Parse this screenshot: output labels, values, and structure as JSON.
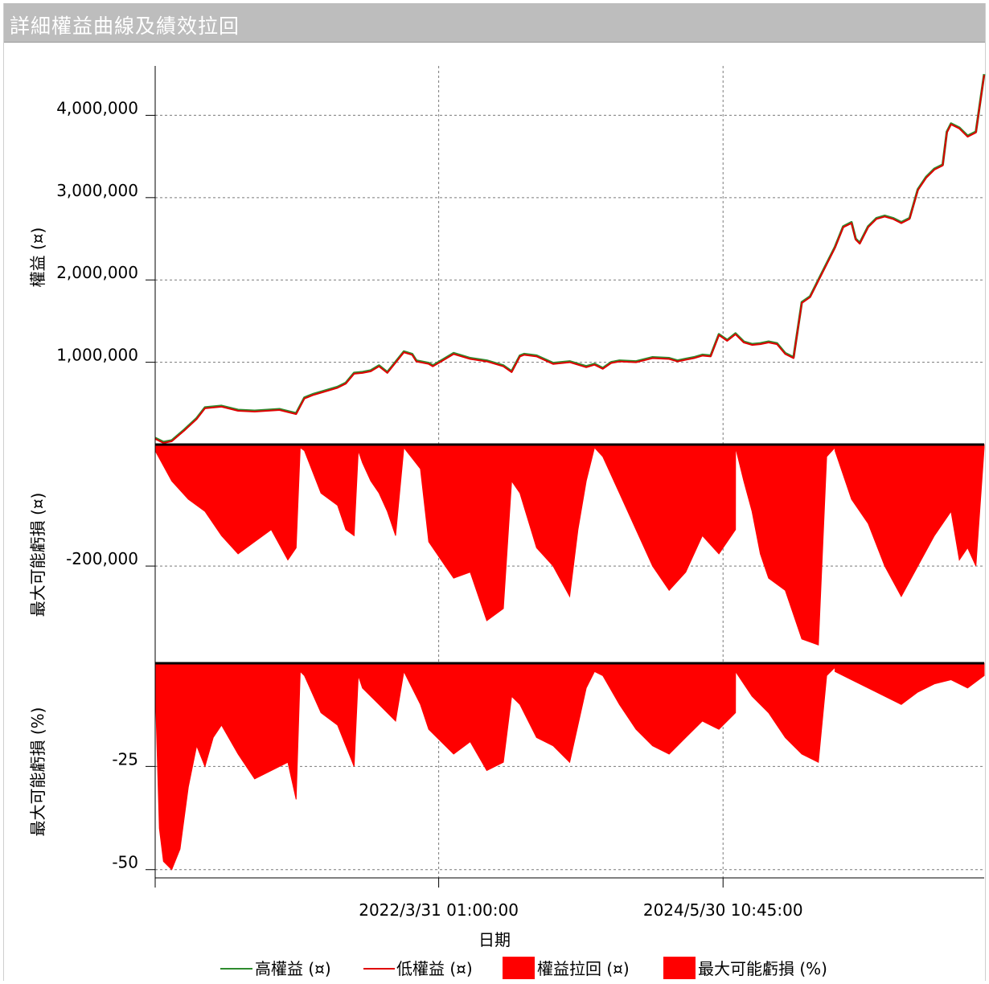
{
  "window": {
    "title": "詳細權益曲線及績效拉回"
  },
  "colors": {
    "high_equity": "#2e8b2e",
    "low_equity": "#e00000",
    "fill": "#ff0000",
    "grid": "#7a7a7a"
  },
  "chart_data": [
    {
      "type": "line",
      "panel": "equity",
      "ylabel": "權益 (¤)",
      "ylim": [
        0,
        4600000
      ],
      "yticks": [
        1000000,
        2000000,
        3000000,
        4000000
      ],
      "ytick_labels": [
        "1,000,000",
        "2,000,000",
        "3,000,000",
        "4,000,000"
      ],
      "x": [
        0,
        0.01,
        0.02,
        0.035,
        0.05,
        0.06,
        0.08,
        0.1,
        0.12,
        0.15,
        0.17,
        0.18,
        0.19,
        0.2,
        0.22,
        0.23,
        0.24,
        0.25,
        0.26,
        0.27,
        0.28,
        0.3,
        0.31,
        0.315,
        0.33,
        0.335,
        0.34,
        0.345,
        0.36,
        0.38,
        0.4,
        0.42,
        0.43,
        0.44,
        0.445,
        0.46,
        0.48,
        0.5,
        0.52,
        0.53,
        0.54,
        0.55,
        0.56,
        0.58,
        0.6,
        0.62,
        0.63,
        0.64,
        0.65,
        0.66,
        0.67,
        0.68,
        0.69,
        0.7,
        0.71,
        0.72,
        0.73,
        0.74,
        0.75,
        0.76,
        0.77,
        0.78,
        0.79,
        0.8,
        0.81,
        0.82,
        0.83,
        0.84,
        0.845,
        0.85,
        0.86,
        0.87,
        0.88,
        0.89,
        0.9,
        0.91,
        0.92,
        0.93,
        0.94,
        0.95,
        0.955,
        0.96,
        0.97,
        0.98,
        0.99,
        1.0
      ],
      "series": [
        {
          "name": "高權益 (¤)",
          "values": [
            80000,
            30000,
            50000,
            180000,
            320000,
            450000,
            470000,
            420000,
            410000,
            430000,
            380000,
            570000,
            610000,
            640000,
            700000,
            750000,
            870000,
            880000,
            900000,
            960000,
            880000,
            1130000,
            1100000,
            1020000,
            990000,
            960000,
            990000,
            1020000,
            1110000,
            1050000,
            1020000,
            960000,
            890000,
            1080000,
            1100000,
            1080000,
            990000,
            1010000,
            950000,
            980000,
            930000,
            1000000,
            1020000,
            1010000,
            1060000,
            1050000,
            1020000,
            1040000,
            1060000,
            1090000,
            1080000,
            1340000,
            1270000,
            1350000,
            1250000,
            1220000,
            1230000,
            1250000,
            1230000,
            1110000,
            1060000,
            1730000,
            1800000,
            2000000,
            2200000,
            2400000,
            2650000,
            2700000,
            2500000,
            2450000,
            2650000,
            2750000,
            2780000,
            2750000,
            2700000,
            2750000,
            3100000,
            3250000,
            3350000,
            3400000,
            3800000,
            3900000,
            3850000,
            3750000,
            3800000,
            4500000
          ]
        },
        {
          "name": "低權益 (¤)",
          "values": [
            70000,
            20000,
            40000,
            170000,
            310000,
            440000,
            460000,
            410000,
            400000,
            420000,
            370000,
            560000,
            600000,
            630000,
            690000,
            740000,
            860000,
            870000,
            890000,
            950000,
            870000,
            1120000,
            1090000,
            1010000,
            980000,
            950000,
            980000,
            1010000,
            1100000,
            1040000,
            1010000,
            950000,
            880000,
            1070000,
            1090000,
            1070000,
            980000,
            1000000,
            940000,
            970000,
            920000,
            990000,
            1010000,
            1000000,
            1050000,
            1040000,
            1010000,
            1030000,
            1050000,
            1080000,
            1070000,
            1330000,
            1260000,
            1340000,
            1240000,
            1210000,
            1220000,
            1240000,
            1220000,
            1100000,
            1050000,
            1720000,
            1790000,
            1990000,
            2190000,
            2390000,
            2640000,
            2690000,
            2490000,
            2440000,
            2640000,
            2740000,
            2770000,
            2740000,
            2690000,
            2740000,
            3090000,
            3240000,
            3340000,
            3390000,
            3790000,
            3890000,
            3840000,
            3740000,
            3790000,
            4490000
          ]
        }
      ],
      "legend": "bottom"
    },
    {
      "type": "area",
      "panel": "drawdown",
      "ylabel": "最大可能虧損 (¤)",
      "ylim": [
        -360000,
        0
      ],
      "yticks": [
        -200000
      ],
      "ytick_labels": [
        "-200,000"
      ],
      "x": [
        0,
        0.02,
        0.04,
        0.06,
        0.08,
        0.1,
        0.12,
        0.14,
        0.16,
        0.17,
        0.175,
        0.18,
        0.2,
        0.22,
        0.23,
        0.24,
        0.245,
        0.25,
        0.26,
        0.27,
        0.28,
        0.29,
        0.3,
        0.32,
        0.33,
        0.35,
        0.36,
        0.38,
        0.4,
        0.42,
        0.43,
        0.44,
        0.46,
        0.48,
        0.5,
        0.51,
        0.52,
        0.53,
        0.54,
        0.56,
        0.58,
        0.6,
        0.62,
        0.64,
        0.66,
        0.68,
        0.7,
        0.7001,
        0.71,
        0.72,
        0.73,
        0.74,
        0.76,
        0.78,
        0.8,
        0.81,
        0.82,
        0.8201,
        0.84,
        0.86,
        0.88,
        0.9,
        0.92,
        0.94,
        0.96,
        0.97,
        0.98,
        0.99,
        1.0
      ],
      "values": [
        -10000,
        -60000,
        -90000,
        -110000,
        -150000,
        -180000,
        -160000,
        -140000,
        -190000,
        -170000,
        -5000,
        -10000,
        -80000,
        -100000,
        -140000,
        -150000,
        -10000,
        -30000,
        -60000,
        -80000,
        -110000,
        -150000,
        -5000,
        -40000,
        -160000,
        -200000,
        -220000,
        -210000,
        -290000,
        -270000,
        -60000,
        -80000,
        -170000,
        -200000,
        -250000,
        -140000,
        -60000,
        -5000,
        -20000,
        -80000,
        -140000,
        -200000,
        -240000,
        -210000,
        -150000,
        -180000,
        -140000,
        -5000,
        -60000,
        -110000,
        -180000,
        -220000,
        -240000,
        -320000,
        -330000,
        -20000,
        -5000,
        -10000,
        -90000,
        -130000,
        -200000,
        -250000,
        -200000,
        -150000,
        -110000,
        -190000,
        -170000,
        -200000,
        -5000
      ],
      "legend": "bottom"
    },
    {
      "type": "area",
      "panel": "drawdown_pct",
      "ylabel": "最大可能虧損 (%)",
      "ylim": [
        -52,
        0
      ],
      "yticks": [
        -25,
        -50
      ],
      "ytick_labels": [
        "-25",
        "-50"
      ],
      "x": [
        0,
        0.005,
        0.01,
        0.02,
        0.03,
        0.04,
        0.05,
        0.06,
        0.07,
        0.08,
        0.1,
        0.12,
        0.14,
        0.16,
        0.17,
        0.175,
        0.18,
        0.2,
        0.22,
        0.23,
        0.24,
        0.245,
        0.25,
        0.27,
        0.29,
        0.3,
        0.32,
        0.33,
        0.35,
        0.36,
        0.38,
        0.4,
        0.42,
        0.43,
        0.44,
        0.46,
        0.48,
        0.5,
        0.51,
        0.52,
        0.53,
        0.54,
        0.56,
        0.58,
        0.6,
        0.62,
        0.64,
        0.66,
        0.68,
        0.7,
        0.7001,
        0.72,
        0.74,
        0.76,
        0.78,
        0.8,
        0.81,
        0.82,
        0.8201,
        0.84,
        0.86,
        0.88,
        0.9,
        0.92,
        0.94,
        0.96,
        0.98,
        1.0
      ],
      "values": [
        -5,
        -40,
        -48,
        -50,
        -45,
        -30,
        -20,
        -25,
        -18,
        -15,
        -22,
        -28,
        -26,
        -24,
        -33,
        -2,
        -3,
        -12,
        -15,
        -20,
        -25,
        -3,
        -6,
        -10,
        -14,
        -2,
        -10,
        -16,
        -20,
        -22,
        -19,
        -26,
        -24,
        -8,
        -10,
        -18,
        -20,
        -24,
        -15,
        -6,
        -2,
        -3,
        -10,
        -16,
        -20,
        -22,
        -18,
        -14,
        -16,
        -12,
        -2,
        -8,
        -12,
        -18,
        -22,
        -24,
        -3,
        -1,
        -2,
        -4,
        -6,
        -8,
        -10,
        -7,
        -5,
        -4,
        -6,
        -3
      ],
      "legend": "bottom"
    }
  ],
  "xaxis": {
    "label": "日期",
    "ticks": [
      {
        "x": 0.342,
        "label": "2022/3/31 01:00:00"
      },
      {
        "x": 0.685,
        "label": "2024/5/30 10:45:00"
      }
    ]
  },
  "legend": [
    {
      "label": "高權益 (¤)",
      "kind": "line",
      "color": "#2e8b2e"
    },
    {
      "label": "低權益 (¤)",
      "kind": "line",
      "color": "#e00000"
    },
    {
      "label": "權益拉回 (¤)",
      "kind": "box",
      "color": "#ff0000"
    },
    {
      "label": "最大可能虧損 (%)",
      "kind": "box",
      "color": "#ff0000"
    }
  ]
}
